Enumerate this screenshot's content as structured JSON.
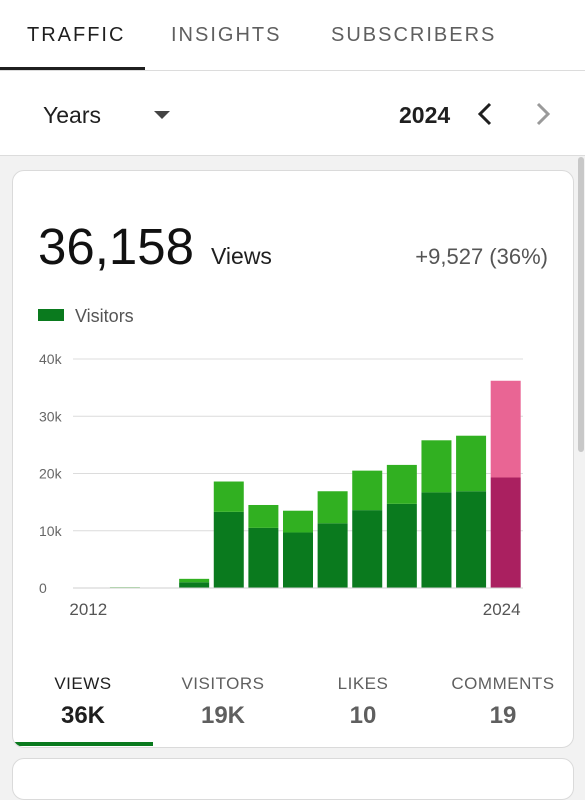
{
  "tabs": [
    {
      "label": "TRAFFIC",
      "active": true
    },
    {
      "label": "INSIGHTS",
      "active": false
    },
    {
      "label": "SUBSCRIBERS",
      "active": false
    }
  ],
  "period": {
    "selected": "Years",
    "year": "2024",
    "prev_icon": "chevron-left-icon",
    "next_icon": "chevron-right-icon"
  },
  "summary": {
    "total": "36,158",
    "unit": "Views",
    "delta": "+9,527 (36%)"
  },
  "legend": {
    "label": "Visitors",
    "color": "#0a7a1e"
  },
  "chart_data": {
    "type": "bar",
    "stacked": true,
    "x": [
      "2012",
      "2013",
      "2014",
      "2015",
      "2016",
      "2017",
      "2018",
      "2019",
      "2020",
      "2021",
      "2022",
      "2023",
      "2024"
    ],
    "series": [
      {
        "name": "Visitors",
        "values": [
          0,
          50,
          0,
          1000,
          13300,
          10500,
          9700,
          11300,
          13600,
          14700,
          16700,
          16900,
          19300
        ],
        "color": "#0a7a1e",
        "highlight_color": "#aa2060"
      },
      {
        "values": [
          0,
          80,
          0,
          600,
          5300,
          4000,
          3800,
          5600,
          6900,
          6800,
          9100,
          9700,
          16900
        ],
        "color": "#31b021",
        "highlight_color": "#e96594"
      }
    ],
    "x_tick_labels": [
      "2012",
      "2024"
    ],
    "y_ticks": [
      "40k",
      "30k",
      "20k",
      "10k",
      "0"
    ],
    "ylim": [
      0,
      40000
    ],
    "grid": true,
    "legend_position": "top-left"
  },
  "metrics": [
    {
      "label": "VIEWS",
      "value": "36K",
      "active": true
    },
    {
      "label": "VISITORS",
      "value": "19K",
      "active": false
    },
    {
      "label": "LIKES",
      "value": "10",
      "active": false
    },
    {
      "label": "COMMENTS",
      "value": "19",
      "active": false
    }
  ]
}
